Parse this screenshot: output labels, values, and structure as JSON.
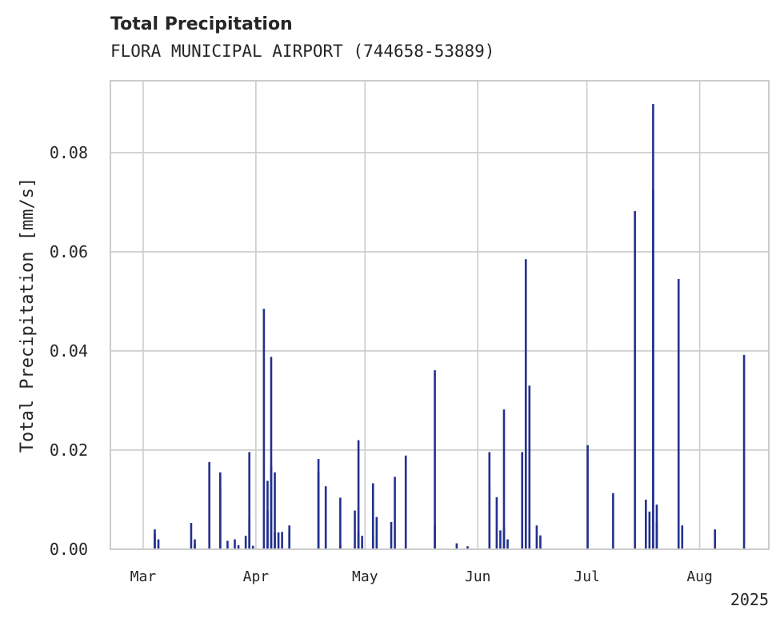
{
  "chart_data": {
    "type": "bar",
    "title": "Total Precipitation",
    "subtitle": "FLORA MUNICIPAL AIRPORT (744658-53889)",
    "xlabel": "",
    "ylabel": "Total Precipitation [mm/s]",
    "x_range": [
      "2025-02-20",
      "2025-08-20"
    ],
    "ylim": [
      0,
      0.0945
    ],
    "yticks": [
      0.0,
      0.02,
      0.04,
      0.06,
      0.08
    ],
    "ytick_labels": [
      "0.00",
      "0.02",
      "0.04",
      "0.06",
      "0.08"
    ],
    "xticks": [
      "2025-03-01",
      "2025-04-01",
      "2025-05-01",
      "2025-06-01",
      "2025-07-01",
      "2025-08-01"
    ],
    "xtick_labels": [
      "Mar",
      "Apr",
      "May",
      "Jun",
      "Jul",
      "Aug"
    ],
    "x_offset_label": "2025",
    "grid": true,
    "colors": {
      "bar": "#23308f",
      "grid": "#cccccc",
      "spine": "#cccccc",
      "text": "#262626"
    },
    "series": [
      {
        "x": [
          "2025-03-04",
          "2025-03-04",
          "2025-03-05",
          "2025-03-14",
          "2025-03-15",
          "2025-03-15",
          "2025-03-19",
          "2025-03-22",
          "2025-03-22",
          "2025-03-24",
          "2025-03-26",
          "2025-03-27",
          "2025-03-29",
          "2025-03-30",
          "2025-03-30",
          "2025-03-31",
          "2025-04-03",
          "2025-04-04",
          "2025-04-04",
          "2025-04-05",
          "2025-04-05",
          "2025-04-06",
          "2025-04-06",
          "2025-04-07",
          "2025-04-08",
          "2025-04-10",
          "2025-04-10",
          "2025-04-18",
          "2025-04-18",
          "2025-04-20",
          "2025-04-24",
          "2025-04-24",
          "2025-04-28",
          "2025-04-29",
          "2025-04-29",
          "2025-04-30",
          "2025-05-03",
          "2025-05-03",
          "2025-05-04",
          "2025-05-08",
          "2025-05-09",
          "2025-05-12",
          "2025-05-12",
          "2025-05-20",
          "2025-05-20",
          "2025-05-26",
          "2025-05-29",
          "2025-06-04",
          "2025-06-04",
          "2025-06-06",
          "2025-06-07",
          "2025-06-08",
          "2025-06-08",
          "2025-06-09",
          "2025-06-13",
          "2025-06-14",
          "2025-06-15",
          "2025-06-17",
          "2025-06-18",
          "2025-07-01",
          "2025-07-08",
          "2025-07-14",
          "2025-07-17",
          "2025-07-18",
          "2025-07-19",
          "2025-07-19",
          "2025-07-20",
          "2025-07-20",
          "2025-07-26",
          "2025-07-27",
          "2025-08-05",
          "2025-08-13"
        ],
        "values": [
          0.004,
          0.003,
          0.002,
          0.0053,
          0.002,
          0.001,
          0.0176,
          0.0155,
          0.0124,
          0.0017,
          0.002,
          0.0008,
          0.0027,
          0.0196,
          0.0062,
          0.0007,
          0.0485,
          0.0077,
          0.0138,
          0.0388,
          0.0168,
          0.0155,
          0.0035,
          0.0034,
          0.0035,
          0.0048,
          0.0035,
          0.0182,
          0.0155,
          0.0127,
          0.0104,
          0.0008,
          0.0078,
          0.022,
          0.0035,
          0.0027,
          0.0027,
          0.0133,
          0.0065,
          0.0055,
          0.0146,
          0.0189,
          0.0009,
          0.0361,
          0.0048,
          0.0012,
          0.0006,
          0.0196,
          0.0127,
          0.0105,
          0.0038,
          0.0282,
          0.0045,
          0.002,
          0.0196,
          0.0585,
          0.033,
          0.0048,
          0.0028,
          0.021,
          0.0113,
          0.0682,
          0.01,
          0.0076,
          0.0725,
          0.0898,
          0.009,
          0.0055,
          0.0545,
          0.0048,
          0.004,
          0.0392
        ]
      }
    ]
  }
}
